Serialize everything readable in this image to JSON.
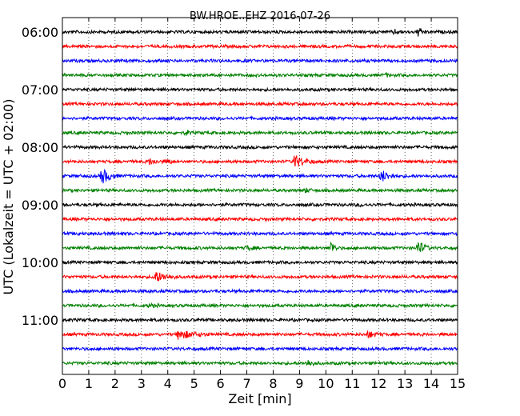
{
  "chart_data": {
    "type": "line",
    "title": "BW.HROE..EHZ 2016-07-26",
    "xlabel": "Zeit  [min]",
    "ylabel": "UTC (Lokalzeit = UTC + 02:00)",
    "xlim": [
      0,
      15
    ],
    "x_ticks": [
      0,
      1,
      2,
      3,
      4,
      5,
      6,
      7,
      8,
      9,
      10,
      11,
      12,
      13,
      14,
      15
    ],
    "y_tick_labels": [
      "06:00",
      "07:00",
      "08:00",
      "09:00",
      "10:00",
      "11:00"
    ],
    "grid": "vertical dotted",
    "trace_interval_min": 15,
    "trace_colors": [
      "#000000",
      "#ff0000",
      "#0000ff",
      "#008000"
    ],
    "series": [
      {
        "start": "06:00",
        "color": "#000000",
        "events": [
          {
            "t": 13.5,
            "amp": 0.4,
            "dur": 0.3
          },
          {
            "t": 12.6,
            "amp": 0.2,
            "dur": 0.3
          }
        ]
      },
      {
        "start": "06:15",
        "color": "#ff0000",
        "events": []
      },
      {
        "start": "06:30",
        "color": "#0000ff",
        "events": []
      },
      {
        "start": "06:45",
        "color": "#008000",
        "events": [
          {
            "t": 12.3,
            "amp": 0.15,
            "dur": 0.3
          }
        ]
      },
      {
        "start": "07:00",
        "color": "#000000",
        "events": []
      },
      {
        "start": "07:15",
        "color": "#ff0000",
        "events": []
      },
      {
        "start": "07:30",
        "color": "#0000ff",
        "events": []
      },
      {
        "start": "07:45",
        "color": "#008000",
        "events": [
          {
            "t": 4.7,
            "amp": 0.35,
            "dur": 0.15
          }
        ]
      },
      {
        "start": "08:00",
        "color": "#000000",
        "events": []
      },
      {
        "start": "08:15",
        "color": "#ff0000",
        "events": [
          {
            "t": 8.8,
            "amp": 0.65,
            "dur": 0.8
          },
          {
            "t": 3.3,
            "amp": 0.25,
            "dur": 0.6
          },
          {
            "t": 4.0,
            "amp": 0.2,
            "dur": 0.3
          }
        ]
      },
      {
        "start": "08:30",
        "color": "#0000ff",
        "events": [
          {
            "t": 1.5,
            "amp": 0.8,
            "dur": 0.6
          },
          {
            "t": 12.1,
            "amp": 0.6,
            "dur": 0.6
          }
        ]
      },
      {
        "start": "08:45",
        "color": "#008000",
        "events": [
          {
            "t": 9.2,
            "amp": 0.2,
            "dur": 0.4
          }
        ]
      },
      {
        "start": "09:00",
        "color": "#000000",
        "events": [
          {
            "t": 11.3,
            "amp": 0.1,
            "dur": 0.3
          }
        ]
      },
      {
        "start": "09:15",
        "color": "#ff0000",
        "events": []
      },
      {
        "start": "09:30",
        "color": "#0000ff",
        "events": [
          {
            "t": 0.6,
            "amp": 0.2,
            "dur": 0.1
          }
        ]
      },
      {
        "start": "09:45",
        "color": "#008000",
        "events": [
          {
            "t": 10.2,
            "amp": 0.7,
            "dur": 0.3
          },
          {
            "t": 13.5,
            "amp": 0.7,
            "dur": 0.5
          },
          {
            "t": 7.0,
            "amp": 0.2,
            "dur": 0.4
          }
        ]
      },
      {
        "start": "10:00",
        "color": "#000000",
        "events": []
      },
      {
        "start": "10:15",
        "color": "#ff0000",
        "events": [
          {
            "t": 3.5,
            "amp": 0.55,
            "dur": 0.9
          }
        ]
      },
      {
        "start": "10:30",
        "color": "#0000ff",
        "events": []
      },
      {
        "start": "10:45",
        "color": "#008000",
        "events": [
          {
            "t": 3.3,
            "amp": 0.15,
            "dur": 0.4
          }
        ]
      },
      {
        "start": "11:00",
        "color": "#000000",
        "events": []
      },
      {
        "start": "11:15",
        "color": "#ff0000",
        "events": [
          {
            "t": 4.4,
            "amp": 0.45,
            "dur": 1.2
          },
          {
            "t": 11.6,
            "amp": 0.3,
            "dur": 0.6
          }
        ]
      },
      {
        "start": "11:30",
        "color": "#0000ff",
        "events": []
      },
      {
        "start": "11:45",
        "color": "#008000",
        "events": [
          {
            "t": 9.3,
            "amp": 0.3,
            "dur": 0.5
          }
        ]
      }
    ]
  }
}
